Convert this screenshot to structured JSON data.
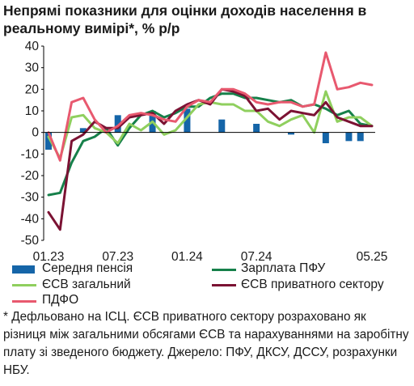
{
  "chart_data": {
    "type": "line",
    "title": "Непрямі показники для оцінки доходів населення в реальному вимірі*, % р/р",
    "x_tick_labels": [
      "01.23",
      "07.23",
      "01.24",
      "07.24",
      "05.25"
    ],
    "yticks": [
      40,
      30,
      20,
      10,
      0,
      -10,
      -20,
      -30,
      -40,
      -50
    ],
    "ylim": [
      -50,
      40
    ],
    "grid": false,
    "legend_position": "bottom",
    "x": [
      "01.23",
      "02.23",
      "03.23",
      "04.23",
      "05.23",
      "06.23",
      "07.23",
      "08.23",
      "09.23",
      "10.23",
      "11.23",
      "12.23",
      "01.24",
      "02.24",
      "03.24",
      "04.24",
      "05.24",
      "06.24",
      "07.24",
      "08.24",
      "09.24",
      "10.24",
      "11.24",
      "12.24",
      "01.25",
      "02.25",
      "03.25",
      "04.25",
      "05.25"
    ],
    "bars": {
      "name": "Середня пенсія",
      "color": "#1565a8",
      "values": [
        -8,
        null,
        null,
        2,
        null,
        null,
        8,
        null,
        null,
        10,
        null,
        null,
        11,
        null,
        null,
        6,
        null,
        null,
        4,
        null,
        null,
        -1,
        null,
        null,
        -5,
        null,
        -4,
        -4,
        null
      ]
    },
    "series": [
      {
        "name": "Зарплата ПФУ",
        "color": "#16804a",
        "values": [
          -29,
          -28,
          -14,
          -4,
          -2,
          2,
          -6,
          2,
          8,
          10,
          7,
          9,
          12,
          12,
          16,
          18,
          18,
          16,
          16,
          15,
          14,
          15,
          12,
          13,
          11,
          8,
          10,
          4,
          3
        ]
      },
      {
        "name": "ЄСВ загальний",
        "color": "#8fcf5e",
        "values": [
          -2,
          -12,
          7,
          8,
          2,
          0,
          -5,
          4,
          1,
          5,
          -1,
          1,
          7,
          13,
          14,
          13,
          13,
          10,
          10,
          5,
          3,
          6,
          8,
          0,
          19,
          5,
          7,
          7,
          3
        ]
      },
      {
        "name": "ЄСВ приватного сектору",
        "color": "#7b1233",
        "values": [
          -37,
          -45,
          -4,
          -1,
          5,
          2,
          2,
          7,
          8,
          9,
          4,
          10,
          13,
          15,
          13,
          20,
          19,
          17,
          10,
          11,
          6,
          10,
          9,
          8,
          14,
          7,
          5,
          3,
          3
        ]
      },
      {
        "name": "ПДФО",
        "color": "#e8596f",
        "values": [
          0,
          -13,
          14,
          16,
          6,
          0,
          3,
          8,
          9,
          8,
          6,
          5,
          12,
          15,
          14,
          20,
          20,
          18,
          14,
          13,
          14,
          14,
          12,
          13,
          37,
          20,
          21,
          23,
          22
        ]
      }
    ]
  },
  "footnote": "* Дефльовано на ІСЦ. ЄСВ приватного сектору розраховано як різниця між загальними обсягами ЄСВ та нарахуваннями на заробітну плату зі зведеного бюджету. Джерело: ПФУ, ДКСУ, ДССУ, розрахунки НБУ."
}
